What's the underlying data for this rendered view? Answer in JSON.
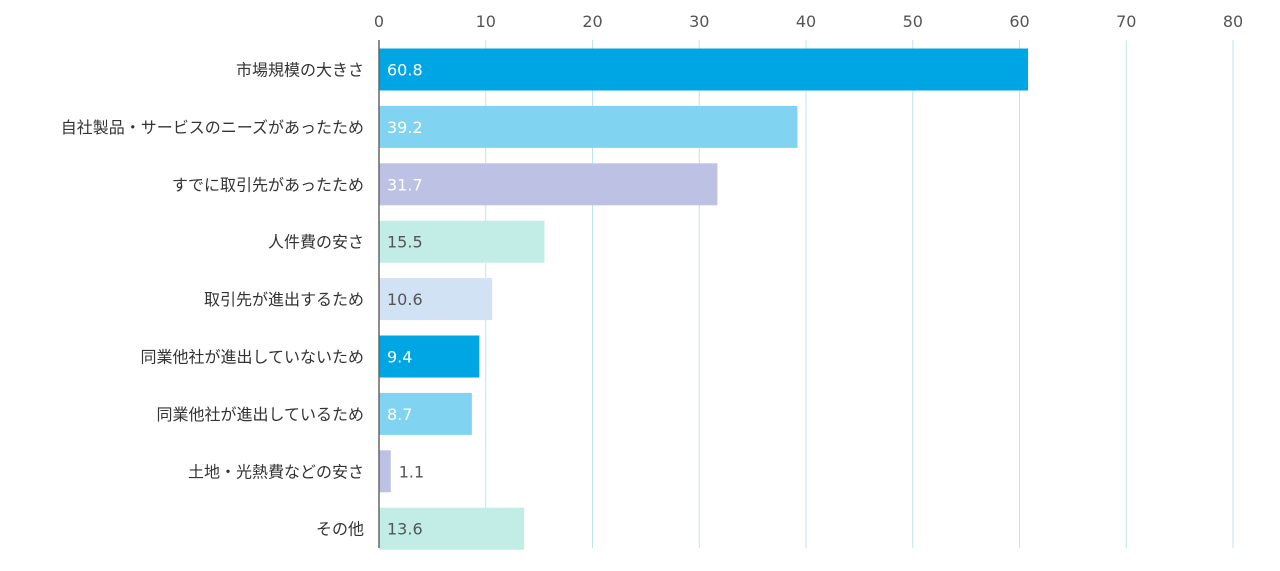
{
  "chart_data": {
    "type": "bar",
    "orientation": "horizontal",
    "categories": [
      "市場規模の大きさ",
      "自社製品・サービスのニーズがあったため",
      "すでに取引先があったため",
      "人件費の安さ",
      "取引先が進出するため",
      "同業他社が進出していないため",
      "同業他社が進出しているため",
      "土地・光熱費などの安さ",
      "その他"
    ],
    "values": [
      60.8,
      39.2,
      31.7,
      15.5,
      10.6,
      9.4,
      8.7,
      1.1,
      13.6
    ],
    "value_labels": [
      "60.8",
      "39.2",
      "31.7",
      "15.5",
      "10.6",
      "9.4",
      "8.7",
      "1.1",
      "13.6"
    ],
    "bar_colors": [
      "#00a5e3",
      "#80d4f2",
      "#bdc1e3",
      "#c1ede6",
      "#d2e2f5",
      "#00a5e3",
      "#80d4f2",
      "#bdc1e3",
      "#c1ede6"
    ],
    "label_colors": [
      "#ffffff",
      "#ffffff",
      "#ffffff",
      "#555555",
      "#555555",
      "#ffffff",
      "#ffffff",
      "#555555",
      "#555555"
    ],
    "xlim": [
      0,
      80
    ],
    "xticks": [
      0,
      10,
      20,
      30,
      40,
      50,
      60,
      70,
      80
    ],
    "xtick_labels": [
      "0",
      "10",
      "20",
      "30",
      "40",
      "50",
      "60",
      "70",
      "80"
    ],
    "x_axis_position": "top",
    "grid": true,
    "grid_color": "#bfe3f0",
    "legend": false,
    "title": "",
    "xlabel": "",
    "ylabel": ""
  }
}
